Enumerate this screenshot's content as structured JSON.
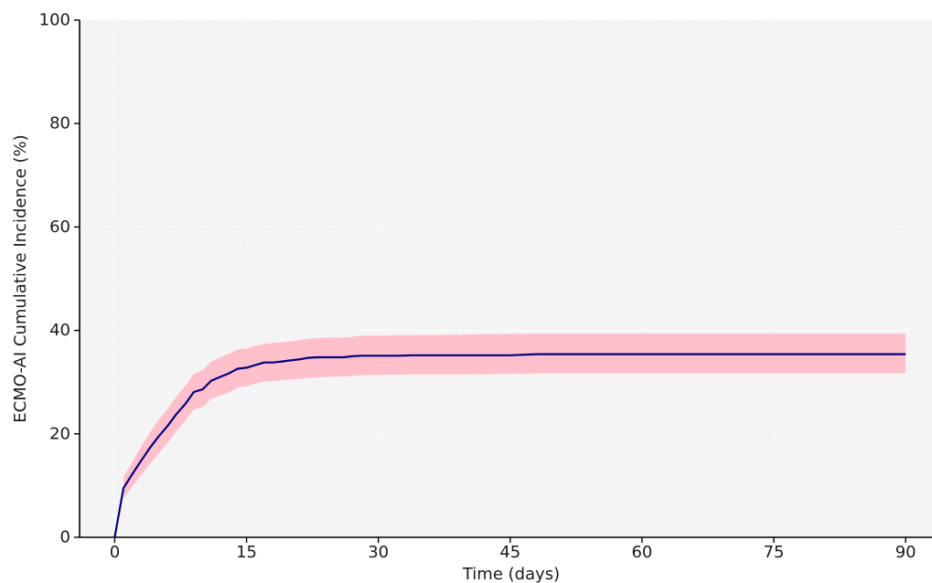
{
  "chart_data": {
    "type": "line",
    "title": "",
    "xlabel": "Time (days)",
    "ylabel": "ECMO-AI Cumulative Incidence (%)",
    "xlim": [
      -4,
      93
    ],
    "ylim": [
      0,
      100
    ],
    "xticks": [
      "0",
      "15",
      "30",
      "45",
      "60",
      "75",
      "90"
    ],
    "yticks": [
      "0",
      "20",
      "40",
      "60",
      "80",
      "100"
    ],
    "grid": true,
    "legend": "none",
    "colors": {
      "line": "#000080",
      "band": "#ffc0cb",
      "plot_background": "#f4f4f4",
      "grid": "#ffffff",
      "axis": "#000000"
    },
    "series": [
      {
        "type": "line",
        "x": [
          0,
          1,
          2,
          3,
          4,
          5,
          6,
          7,
          8,
          9,
          10,
          11,
          12,
          13,
          14,
          15,
          16,
          17,
          18,
          19,
          20,
          21,
          22,
          23,
          24,
          25,
          26,
          27,
          28,
          30,
          32,
          34,
          36,
          40,
          45,
          48,
          50,
          55,
          60,
          65,
          70,
          75,
          80,
          85,
          90
        ],
        "y": [
          0,
          9.5,
          12.2,
          14.8,
          17.3,
          19.5,
          21.5,
          23.8,
          25.7,
          28.1,
          28.6,
          30.3,
          31.0,
          31.7,
          32.6,
          32.8,
          33.3,
          33.8,
          33.8,
          34.0,
          34.2,
          34.4,
          34.7,
          34.8,
          34.8,
          34.8,
          34.8,
          35.0,
          35.1,
          35.1,
          35.1,
          35.2,
          35.2,
          35.2,
          35.2,
          35.4,
          35.4,
          35.4,
          35.4,
          35.4,
          35.4,
          35.4,
          35.4,
          35.4,
          35.4
        ]
      },
      {
        "type": "confidence_band",
        "x": [
          1,
          2,
          3,
          4,
          5,
          6,
          7,
          8,
          9,
          10,
          11,
          12,
          13,
          14,
          15,
          16,
          17,
          18,
          20,
          22,
          24,
          26,
          28,
          30,
          34,
          40,
          48,
          55,
          60,
          70,
          80,
          90
        ],
        "lower": [
          7.5,
          9.8,
          12.0,
          14.2,
          16.2,
          18.2,
          20.4,
          22.5,
          24.7,
          25.2,
          26.8,
          27.4,
          28.0,
          29.0,
          29.2,
          29.7,
          30.1,
          30.2,
          30.5,
          30.8,
          31.0,
          31.1,
          31.3,
          31.4,
          31.5,
          31.5,
          31.7,
          31.7,
          31.7,
          31.7,
          31.7,
          31.7
        ],
        "upper": [
          11.8,
          14.5,
          17.5,
          20.3,
          22.7,
          24.8,
          27.2,
          29.2,
          31.6,
          32.3,
          34.0,
          34.8,
          35.5,
          36.3,
          36.5,
          37.0,
          37.4,
          37.6,
          37.9,
          38.4,
          38.6,
          38.6,
          39.0,
          39.0,
          39.1,
          39.2,
          39.4,
          39.4,
          39.4,
          39.4,
          39.4,
          39.4
        ]
      }
    ]
  }
}
